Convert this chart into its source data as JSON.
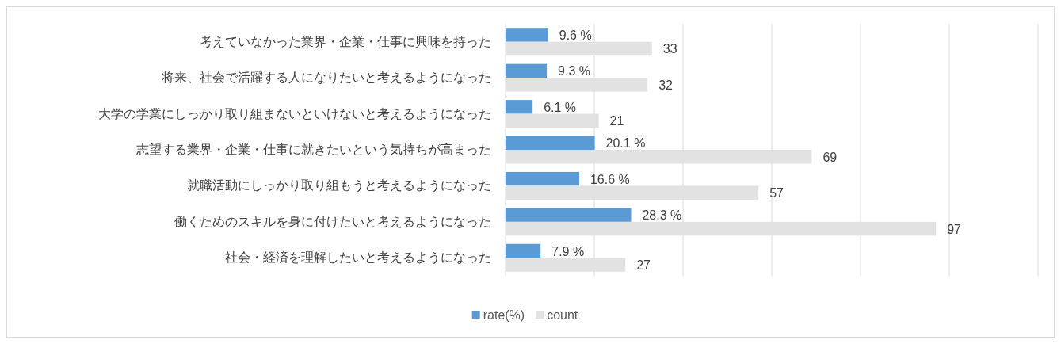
{
  "chart_data": {
    "type": "bar",
    "orientation": "horizontal",
    "categories": [
      "考えていなかった業界・企業・仕事に興味を持った",
      "将来、社会で活躍する人になりたいと考えるようになった",
      "大学の学業にしっかり取り組まないといけないと考えるようになった",
      "志望する業界・企業・仕事に就きたいという気持ちが高まった",
      "就職活動にしっかり取り組もうと考えるようになった",
      "働くためのスキルを身に付けたいと考えるようになった",
      "社会・経済を理解したいと考えるようになった"
    ],
    "series": [
      {
        "name": "rate(%)",
        "color": "#5b9bd5",
        "values": [
          9.6,
          9.3,
          6.1,
          20.1,
          16.6,
          28.3,
          7.9
        ],
        "value_labels": [
          "9.6 %",
          "9.3 %",
          "6.1 %",
          "20.1 %",
          "16.6 %",
          "28.3 %",
          "7.9 %"
        ]
      },
      {
        "name": "count",
        "color": "#e2e2e2",
        "values": [
          33,
          32,
          21,
          69,
          57,
          97,
          27
        ],
        "value_labels": [
          "33",
          "32",
          "21",
          "69",
          "57",
          "97",
          "27"
        ]
      }
    ],
    "xlim": [
      0,
      120
    ],
    "xticks": [
      {
        "value": 0,
        "label": null
      },
      {
        "value": 20,
        "label": null
      },
      {
        "value": 40,
        "label": null
      },
      {
        "value": 60,
        "label": null
      },
      {
        "value": 80,
        "label": null
      },
      {
        "value": 100,
        "label": null
      },
      {
        "value": 120,
        "label": null
      }
    ],
    "grid": "x",
    "legend": "bottom"
  }
}
